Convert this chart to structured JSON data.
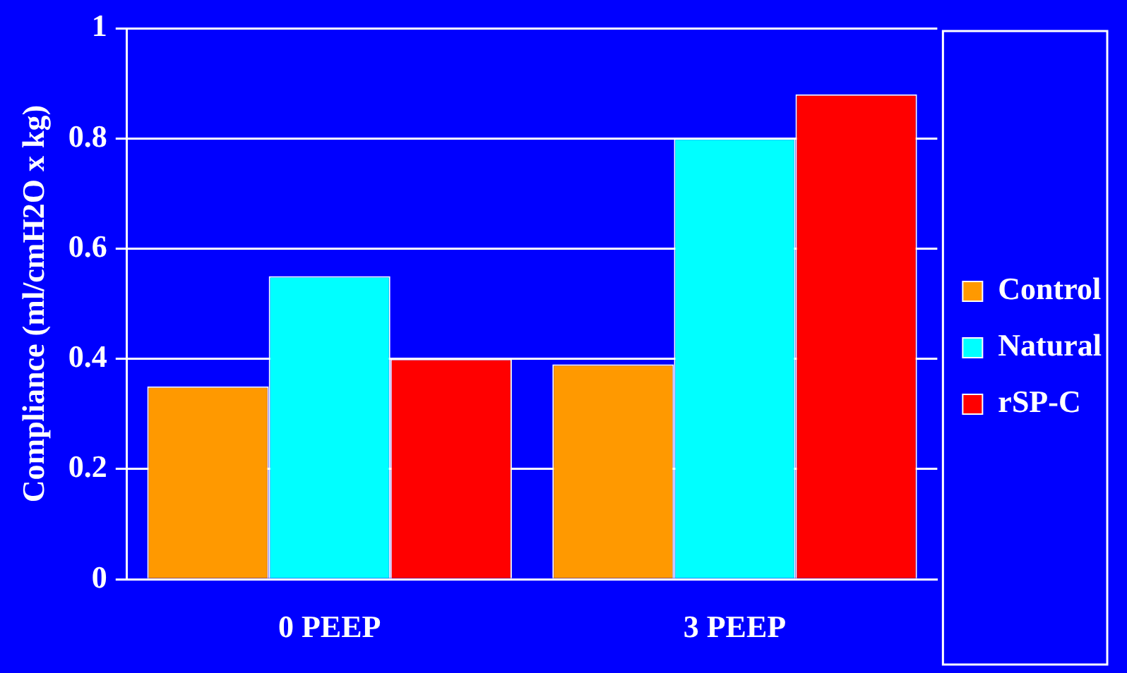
{
  "chart_data": {
    "type": "bar",
    "ylabel": "Compliance (ml/cmH2O x kg)",
    "categories": [
      "0 PEEP",
      "3 PEEP"
    ],
    "series": [
      {
        "name": "Control",
        "color": "#ff9900",
        "values": [
          0.35,
          0.39
        ]
      },
      {
        "name": "Natural",
        "color": "#00ffff",
        "values": [
          0.55,
          0.8
        ]
      },
      {
        "name": "rSP-C",
        "color": "#ff0000",
        "values": [
          0.4,
          0.88
        ]
      }
    ],
    "ylim": [
      0,
      1
    ],
    "yticks": [
      0,
      0.2,
      0.4,
      0.6,
      0.8,
      1
    ],
    "grid": "y",
    "legend": "right"
  }
}
